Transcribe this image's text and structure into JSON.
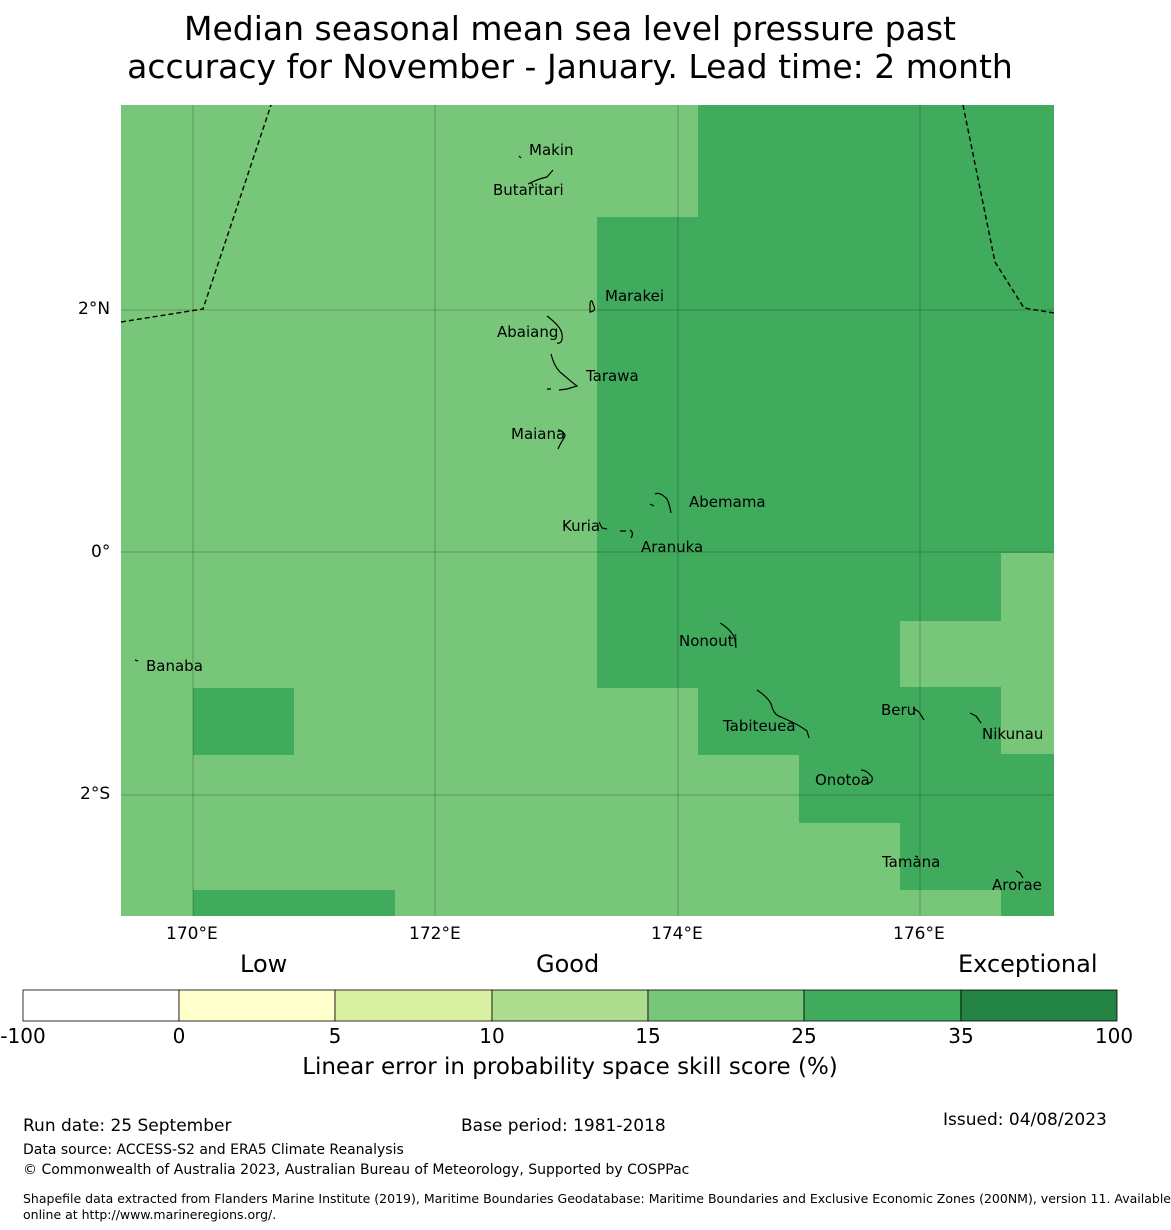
{
  "title": {
    "line1": "Median seasonal mean sea level pressure past",
    "line2": "accuracy for November - January. Lead time: 2 month"
  },
  "colors": {
    "good": "#78c679",
    "very_good": "#41ab5d",
    "exceptional": "#238443",
    "scale": [
      "#ffffff",
      "#ffffcc",
      "#d9f0a3",
      "#addd8e",
      "#78c679",
      "#41ab5d",
      "#238443"
    ]
  },
  "map": {
    "lat_labels": [
      "2°N",
      "0°",
      "2°S"
    ],
    "lon_labels": [
      "170°E",
      "172°E",
      "174°E",
      "176°E"
    ],
    "islands": [
      "Makin",
      "Butaritari",
      "Marakei",
      "Abaiang",
      "Tarawa",
      "Maiana",
      "Abemama",
      "Kuria",
      "Aranuka",
      "Nonouti",
      "Banaba",
      "Beru",
      "Tabiteuea",
      "Nikunau",
      "Onotoa",
      "Tamana",
      "Arorae"
    ]
  },
  "colorbar": {
    "categories": [
      "Low",
      "Good",
      "Exceptional"
    ],
    "ticks": [
      "-100",
      "0",
      "5",
      "10",
      "15",
      "25",
      "35",
      "100"
    ],
    "label": "Linear error in probability space skill score (%)"
  },
  "footer": {
    "run_date": "Run date: 25 September",
    "base_period": "Base period: 1981-2018",
    "issued": "Issued: 04/08/2023",
    "data_source": "Data source: ACCESS-S2 and ERA5 Climate Reanalysis",
    "copyright": "© Commonwealth of Australia 2023, Australian Bureau of Meteorology, Supported by COSPPac",
    "shapefile_line1": "Shapefile data extracted from Flanders Marine Institute (2019), Maritime Boundaries Geodatabase: Maritime Boundaries and Exclusive Economic Zones (200NM), version 11. Available",
    "shapefile_line2": "online at http://www.marineregions.org/."
  }
}
